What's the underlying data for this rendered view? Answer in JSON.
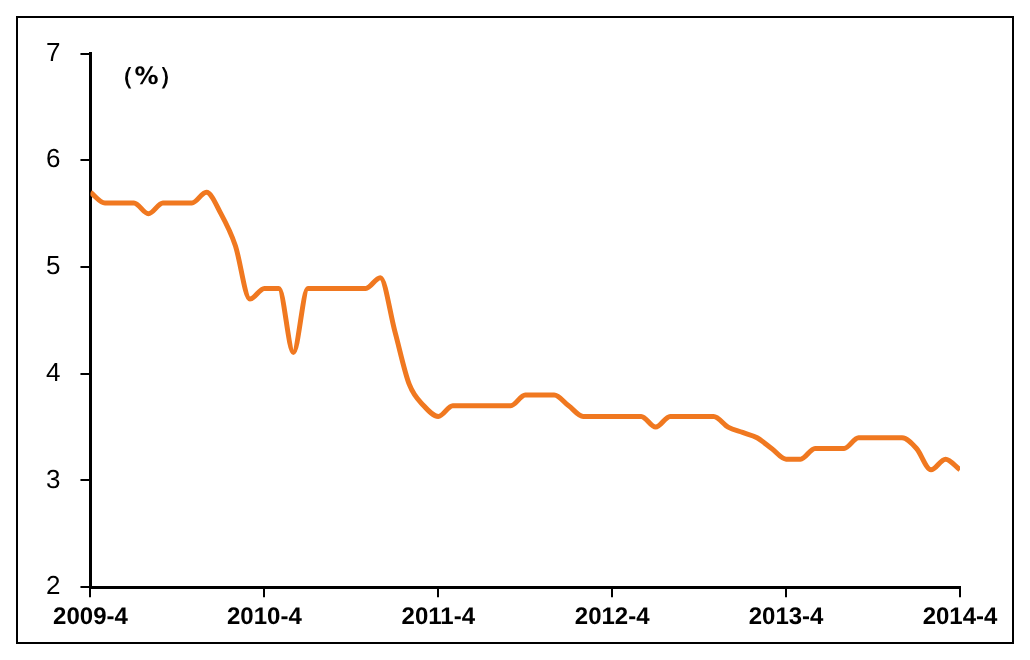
{
  "chart_data": {
    "type": "line",
    "x": [
      "2009-04",
      "2009-05",
      "2009-06",
      "2009-07",
      "2009-08",
      "2009-09",
      "2009-10",
      "2009-11",
      "2009-12",
      "2010-01",
      "2010-02",
      "2010-03",
      "2010-04",
      "2010-05",
      "2010-06",
      "2010-07",
      "2010-08",
      "2010-09",
      "2010-10",
      "2010-11",
      "2010-12",
      "2011-01",
      "2011-02",
      "2011-03",
      "2011-04",
      "2011-05",
      "2011-06",
      "2011-07",
      "2011-08",
      "2011-09",
      "2011-10",
      "2011-11",
      "2011-12",
      "2012-01",
      "2012-02",
      "2012-03",
      "2012-04",
      "2012-05",
      "2012-06",
      "2012-07",
      "2012-08",
      "2012-09",
      "2012-10",
      "2012-11",
      "2012-12",
      "2013-01",
      "2013-02",
      "2013-03",
      "2013-04",
      "2013-05",
      "2013-06",
      "2013-07",
      "2013-08",
      "2013-09",
      "2013-10",
      "2013-11",
      "2013-12",
      "2014-01",
      "2014-02",
      "2014-03",
      "2014-04"
    ],
    "series": [
      {
        "color": "#f07820",
        "values": [
          5.7,
          5.6,
          5.6,
          5.6,
          5.5,
          5.6,
          5.6,
          5.6,
          5.7,
          5.5,
          5.2,
          4.7,
          4.8,
          4.8,
          4.2,
          4.8,
          4.8,
          4.8,
          4.8,
          4.8,
          4.9,
          4.4,
          3.9,
          3.7,
          3.6,
          3.7,
          3.7,
          3.7,
          3.7,
          3.7,
          3.8,
          3.8,
          3.8,
          3.7,
          3.6,
          3.6,
          3.6,
          3.6,
          3.6,
          3.5,
          3.6,
          3.6,
          3.6,
          3.6,
          3.5,
          3.45,
          3.4,
          3.3,
          3.2,
          3.2,
          3.3,
          3.3,
          3.3,
          3.4,
          3.4,
          3.4,
          3.4,
          3.3,
          3.1,
          3.2,
          3.1
        ]
      }
    ],
    "xlim": [
      "2009-04",
      "2014-04"
    ],
    "xticks": [
      {
        "value": "2009-04",
        "label": "2009-4"
      },
      {
        "value": "2010-04",
        "label": "2010-4"
      },
      {
        "value": "2011-04",
        "label": "2011-4"
      },
      {
        "value": "2012-04",
        "label": "2012-4"
      },
      {
        "value": "2013-04",
        "label": "2013-4"
      },
      {
        "value": "2014-04",
        "label": "2014-4"
      }
    ],
    "ylim": [
      2,
      7
    ],
    "yticks": [
      2,
      3,
      4,
      5,
      6,
      7
    ],
    "annotations": [
      "（%）"
    ],
    "grid": false,
    "legend": false,
    "marker": "none",
    "line_style": "solid"
  }
}
